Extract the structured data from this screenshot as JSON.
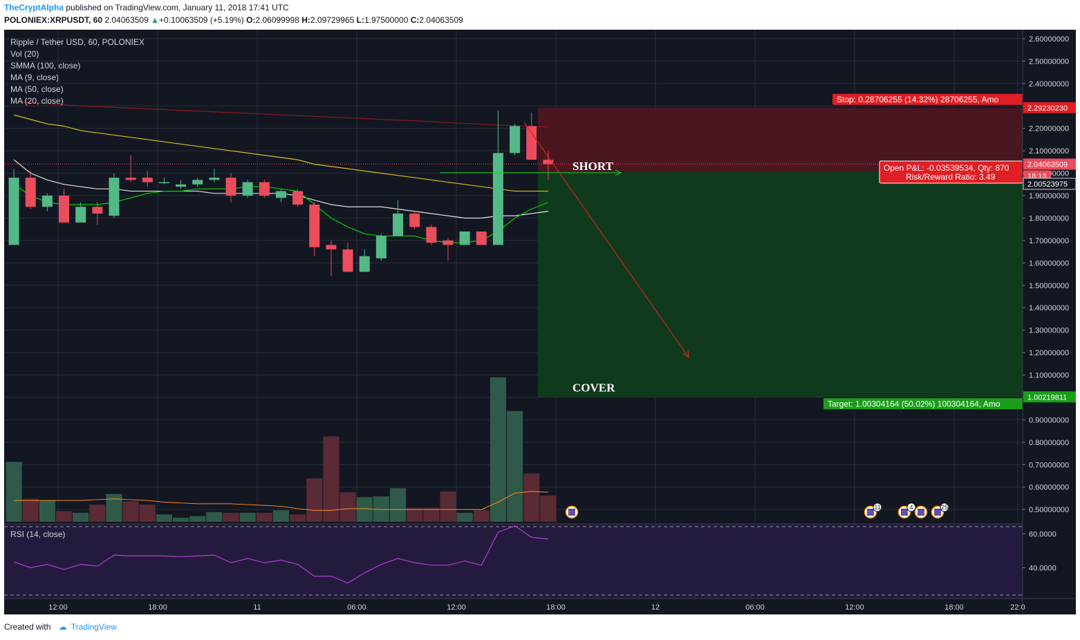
{
  "header": {
    "author": "TheCryptAlpha",
    "published_text": " published on TradingView.com, January 11, 2018 17:41 UTC"
  },
  "ohlc_line": {
    "symbol": "POLONIEX:XRPUSDT, 60",
    "last": "2.04063509",
    "change": "+0.10063509 (+5.19%)",
    "o_label": "O:",
    "o": "2.06099998",
    "h_label": "H:",
    "h": "2.09729965",
    "l_label": "L:",
    "l": "1.97500000",
    "c_label": "C:",
    "c": "2.04063509"
  },
  "legend": {
    "title": "Ripple / Tether USD, 60, POLONIEX",
    "items": [
      "Vol (20)",
      "SMMA (100, close)",
      "MA (9, close)",
      "MA (50, close)",
      "MA (20, close)"
    ]
  },
  "rsi_legend": "RSI (14, close)",
  "colors": {
    "background": "#131722",
    "grid": "#2a2e39",
    "up": "#53b987",
    "down": "#eb4d5c",
    "smma": "#8b1a1a",
    "ma9": "#e0e0e0",
    "ma20": "#00d000",
    "ma50": "#d4c018",
    "vol_ma": "#ff8c1a",
    "rsi": "#b23fd6",
    "stop_zone": "#4a1620",
    "target_zone": "#0f3a1c",
    "stop_label": "#e01e24",
    "target_label": "#1a9e1a"
  },
  "chart_data": {
    "type": "candlestick",
    "price_range": [
      0.445,
      2.64
    ],
    "price_ticks": [
      "2.60000000",
      "2.50000000",
      "2.40000000",
      "2.30000000",
      "2.20000000",
      "2.10000000",
      "2.00000000",
      "1.90000000",
      "1.80000000",
      "1.70000000",
      "1.60000000",
      "1.50000000",
      "1.40000000",
      "1.30000000",
      "1.20000000",
      "1.10000000",
      "1.00000000",
      "0.90000000",
      "0.80000000",
      "0.70000000",
      "0.60000000",
      "0.50000000"
    ],
    "time_ticks": [
      "12:00",
      "18:00",
      "11",
      "06:00",
      "12:00",
      "18:00",
      "12",
      "06:00",
      "12:00",
      "18:00",
      "22:0"
    ],
    "candles": [
      {
        "o": 1.68,
        "h": 2.02,
        "l": 1.68,
        "c": 1.98
      },
      {
        "o": 1.98,
        "h": 2.01,
        "l": 1.84,
        "c": 1.85
      },
      {
        "o": 1.85,
        "h": 1.91,
        "l": 1.83,
        "c": 1.9
      },
      {
        "o": 1.9,
        "h": 1.93,
        "l": 1.78,
        "c": 1.78
      },
      {
        "o": 1.78,
        "h": 1.87,
        "l": 1.78,
        "c": 1.85
      },
      {
        "o": 1.85,
        "h": 1.87,
        "l": 1.77,
        "c": 1.82
      },
      {
        "o": 1.81,
        "h": 2.0,
        "l": 1.8,
        "c": 1.98
      },
      {
        "o": 1.98,
        "h": 2.08,
        "l": 1.96,
        "c": 1.97
      },
      {
        "o": 1.98,
        "h": 2.01,
        "l": 1.94,
        "c": 1.96
      },
      {
        "o": 1.96,
        "h": 1.98,
        "l": 1.95,
        "c": 1.96
      },
      {
        "o": 1.94,
        "h": 1.97,
        "l": 1.93,
        "c": 1.95
      },
      {
        "o": 1.95,
        "h": 1.98,
        "l": 1.94,
        "c": 1.97
      },
      {
        "o": 1.97,
        "h": 2.02,
        "l": 1.96,
        "c": 1.98
      },
      {
        "o": 1.98,
        "h": 2.0,
        "l": 1.87,
        "c": 1.9
      },
      {
        "o": 1.9,
        "h": 1.97,
        "l": 1.89,
        "c": 1.96
      },
      {
        "o": 1.96,
        "h": 1.97,
        "l": 1.89,
        "c": 1.9
      },
      {
        "o": 1.89,
        "h": 1.93,
        "l": 1.87,
        "c": 1.92
      },
      {
        "o": 1.92,
        "h": 1.93,
        "l": 1.85,
        "c": 1.86
      },
      {
        "o": 1.86,
        "h": 1.87,
        "l": 1.63,
        "c": 1.67
      },
      {
        "o": 1.68,
        "h": 1.7,
        "l": 1.54,
        "c": 1.66
      },
      {
        "o": 1.66,
        "h": 1.69,
        "l": 1.56,
        "c": 1.56
      },
      {
        "o": 1.56,
        "h": 1.66,
        "l": 1.56,
        "c": 1.63
      },
      {
        "o": 1.62,
        "h": 1.73,
        "l": 1.61,
        "c": 1.72
      },
      {
        "o": 1.72,
        "h": 1.88,
        "l": 1.72,
        "c": 1.82
      },
      {
        "o": 1.82,
        "h": 1.83,
        "l": 1.75,
        "c": 1.76
      },
      {
        "o": 1.76,
        "h": 1.77,
        "l": 1.68,
        "c": 1.69
      },
      {
        "o": 1.7,
        "h": 1.71,
        "l": 1.61,
        "c": 1.68
      },
      {
        "o": 1.68,
        "h": 1.74,
        "l": 1.68,
        "c": 1.74
      },
      {
        "o": 1.74,
        "h": 1.74,
        "l": 1.68,
        "c": 1.68
      },
      {
        "o": 1.68,
        "h": 2.28,
        "l": 1.68,
        "c": 2.09
      },
      {
        "o": 2.09,
        "h": 2.22,
        "l": 2.08,
        "c": 2.21
      },
      {
        "o": 2.21,
        "h": 2.27,
        "l": 2.06,
        "c": 2.06
      },
      {
        "o": 2.06,
        "h": 2.1,
        "l": 1.97,
        "c": 2.04
      }
    ],
    "ma9": [
      2.06,
      2.0,
      1.97,
      1.95,
      1.94,
      1.93,
      1.93,
      1.92,
      1.92,
      1.92,
      1.92,
      1.92,
      1.91,
      1.91,
      1.91,
      1.91,
      1.91,
      1.9,
      1.88,
      1.86,
      1.85,
      1.85,
      1.85,
      1.84,
      1.83,
      1.82,
      1.81,
      1.8,
      1.8,
      1.81,
      1.81,
      1.82,
      1.83
    ],
    "ma20": [
      1.95,
      1.9,
      1.87,
      1.86,
      1.86,
      1.86,
      1.87,
      1.89,
      1.91,
      1.92,
      1.92,
      1.93,
      1.93,
      1.93,
      1.94,
      1.94,
      1.93,
      1.92,
      1.86,
      1.8,
      1.76,
      1.73,
      1.72,
      1.72,
      1.72,
      1.7,
      1.69,
      1.69,
      1.7,
      1.74,
      1.8,
      1.84,
      1.87
    ],
    "ma50": [
      2.26,
      2.24,
      2.22,
      2.21,
      2.19,
      2.18,
      2.17,
      2.16,
      2.15,
      2.14,
      2.13,
      2.12,
      2.11,
      2.1,
      2.09,
      2.08,
      2.07,
      2.06,
      2.04,
      2.03,
      2.02,
      2.01,
      2.0,
      1.99,
      1.98,
      1.97,
      1.96,
      1.95,
      1.94,
      1.93,
      1.92,
      1.92,
      1.92
    ],
    "smma": [
      2.32,
      2.315,
      2.31,
      2.305,
      2.3,
      2.297,
      2.294,
      2.29,
      2.287,
      2.284,
      2.28,
      2.277,
      2.274,
      2.27,
      2.267,
      2.264,
      2.26,
      2.257,
      2.254,
      2.25,
      2.247,
      2.244,
      2.24,
      2.237,
      2.234,
      2.23,
      2.226,
      2.222,
      2.219,
      2.215,
      2.212,
      2.209,
      2.206
    ],
    "volume_range": [
      0,
      16
    ],
    "volume": [
      7.3,
      2.8,
      2.6,
      1.3,
      1.1,
      2.1,
      3.4,
      2.5,
      2.1,
      0.9,
      0.5,
      0.7,
      1.2,
      1.1,
      1.1,
      1.1,
      1.4,
      0.9,
      5.3,
      10.4,
      3.6,
      3.0,
      3.1,
      4.1,
      1.7,
      1.7,
      3.7,
      1.1,
      1.4,
      17.6,
      13.5,
      5.9,
      3.2
    ],
    "volume_ma": [
      2.6,
      2.6,
      2.6,
      2.6,
      2.6,
      2.7,
      2.8,
      2.7,
      2.6,
      2.4,
      2.3,
      2.2,
      2.2,
      2.2,
      2.1,
      2.0,
      1.9,
      1.6,
      1.4,
      1.4,
      1.6,
      1.6,
      1.5,
      1.5,
      1.5,
      1.5,
      1.5,
      1.5,
      1.5,
      2.4,
      3.5,
      3.7,
      3.6
    ],
    "rsi_range": [
      30,
      70
    ],
    "rsi_ticks": [
      "60.0000",
      "40.0000"
    ],
    "rsi": [
      43.5,
      40,
      42,
      39,
      42,
      41,
      47.5,
      47,
      47,
      47,
      46.5,
      47,
      47.5,
      43,
      45.5,
      43,
      44.5,
      42,
      35,
      35,
      31,
      37,
      42,
      45.5,
      43,
      41.5,
      41.5,
      44,
      41.5,
      61,
      64.8,
      58,
      57
    ],
    "right_labels": [
      {
        "price": 2.2923023,
        "text": "2.29230230",
        "kind": "stop"
      },
      {
        "price": 2.04063509,
        "text": "2.04063509",
        "kind": "last"
      },
      {
        "price": 2.0,
        "text": "18:13",
        "kind": "countdown"
      },
      {
        "price": 2.00523975,
        "text": "2.00523975",
        "kind": "entry"
      },
      {
        "price": 1.00219811,
        "text": "1.00219811",
        "kind": "target"
      }
    ]
  },
  "position": {
    "entry_price": 2.00523975,
    "stop_price": 2.2923023,
    "target_price": 1.00219811,
    "stop_text": "Stop: 0.28706255 (14.32%) 28706255, Amo",
    "target_text": "Target: 1.00304164 (50.02%) 100304164, Amo",
    "pnl_text": "Open P&L: -0.03539534, Qty: 870",
    "rr_text": "Risk/Reward Ratio: 3.49",
    "short_label": "SHORT",
    "cover_label": "COVER"
  },
  "events": [
    {
      "badge": ""
    },
    {
      "badge": "11"
    },
    {
      "badge": "4"
    },
    {
      "badge": ""
    },
    {
      "badge": "25"
    }
  ],
  "footer": {
    "created_with": "Created with",
    "brand": "TradingView"
  }
}
